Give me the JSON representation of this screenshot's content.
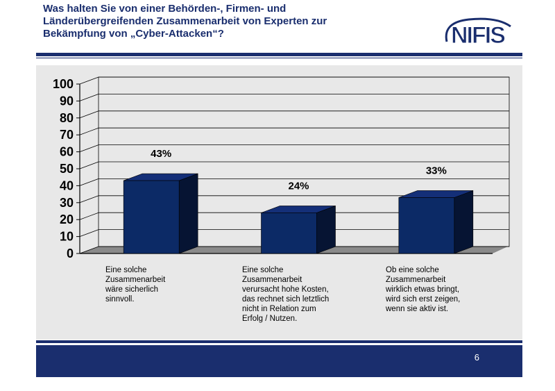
{
  "slide": {
    "title_lines": [
      "Was halten Sie von einer Behörden-, Firmen- und",
      "Länderübergreifenden Zusammenarbeit von Experten zur",
      "Bekämpfung von „Cyber-Attacken“?"
    ],
    "logo_text": "NIFIS",
    "page_number": "6"
  },
  "colors": {
    "navy": "#1a2e6e",
    "bar_front": "#0c2a66",
    "bar_side": "#061433",
    "bar_top": "#142f78",
    "panel": "#e8e8e8",
    "floor": "#8a8a8a"
  },
  "chart_data": {
    "type": "bar",
    "title": "",
    "xlabel": "",
    "ylabel": "",
    "ylim": [
      0,
      100
    ],
    "yticks": [
      0,
      10,
      20,
      30,
      40,
      50,
      60,
      70,
      80,
      90,
      100
    ],
    "categories": [
      "Eine solche\nZusammenarbeit\nwäre sicherlich\nsinnvoll.",
      "Eine solche\nZusammenarbeit\nverursacht hohe Kosten,\ndas rechnet sich letztlich\nnicht in Relation zum\nErfolg / Nutzen.",
      "Ob eine solche\nZusammenarbeit\nwirklich etwas bringt,\nwird sich erst zeigen,\nwenn sie aktiv ist."
    ],
    "values": [
      43,
      24,
      33
    ],
    "data_labels": [
      "43%",
      "24%",
      "33%"
    ],
    "grid": true
  }
}
